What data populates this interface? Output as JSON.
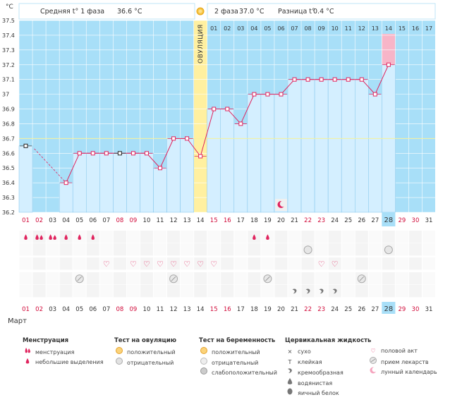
{
  "header": {
    "phase1_label": "Средняя t° 1 фаза",
    "phase1_value": "36.6 °C",
    "phase2_label": "2 фаза",
    "phase2_value": "37.0 °C",
    "diff_label": "Разница t°",
    "diff_value": "0.4 °C",
    "unit": "°C",
    "ovulation_label": "ОВУЛЯЦИЯ"
  },
  "month_label": "Март",
  "chart_data": {
    "type": "line",
    "title": "",
    "ylabel": "°C",
    "ylim": [
      36.2,
      37.5
    ],
    "yticks": [
      "37.5",
      "37.4",
      "37.3",
      "37.2",
      "37.1",
      "37",
      "36.9",
      "36.8",
      "36.7",
      "36.6",
      "36.5",
      "36.4",
      "36.3",
      "36.2"
    ],
    "coverline": 36.7,
    "ovulation_day": 14,
    "today_index": 27,
    "dates": [
      "01",
      "02",
      "03",
      "04",
      "05",
      "06",
      "07",
      "08",
      "09",
      "10",
      "11",
      "12",
      "13",
      "14",
      "15",
      "16",
      "17",
      "18",
      "19",
      "20",
      "21",
      "22",
      "23",
      "24",
      "25",
      "26",
      "27",
      "28",
      "29",
      "30",
      "31"
    ],
    "cycle_days": [
      "01",
      "02",
      "03",
      "04",
      "05",
      "06",
      "07",
      "08",
      "09",
      "10",
      "11",
      "12",
      "13",
      "14",
      "15",
      "16",
      "17"
    ],
    "temperatures": [
      36.65,
      null,
      null,
      36.4,
      36.6,
      36.6,
      36.6,
      36.6,
      36.6,
      36.6,
      36.5,
      36.7,
      36.7,
      36.58,
      36.9,
      36.9,
      36.8,
      37.0,
      37.0,
      37.0,
      37.1,
      37.1,
      37.1,
      37.1,
      37.1,
      37.1,
      37.0,
      37.2,
      null,
      null,
      null
    ],
    "marked_points": [
      1,
      8
    ],
    "red_dates": [
      1,
      2,
      8,
      9,
      15,
      16,
      22,
      23,
      29,
      30
    ],
    "moon_day": 20
  },
  "icon_rows": {
    "menstruation": {
      "01": "small",
      "02": "heavy",
      "03": "heavy",
      "04": "small",
      "05": "small",
      "06": "small",
      "18": "small",
      "19": "small"
    },
    "ovulation_test": {
      "22": "negative",
      "28": "negative"
    },
    "intercourse": {
      "07": "heart",
      "09": "heart",
      "10": "heart",
      "11": "heart",
      "12": "heart",
      "13": "heart",
      "14": "heart",
      "15": "heart",
      "23": "heart",
      "24": "heart"
    },
    "medication": {
      "05": "pill",
      "12": "pill",
      "19": "pill",
      "26": "pill"
    },
    "cervical_fluid": {
      "21": "creamy",
      "22": "creamy",
      "23": "creamy",
      "24": "creamy"
    }
  },
  "legend": {
    "col1": {
      "title": "Менструация",
      "items": [
        "менструация",
        "небольшие выделения"
      ]
    },
    "col2": {
      "title": "Тест на овуляцию",
      "items": [
        "положительный",
        "отрицательный"
      ]
    },
    "col3": {
      "title": "Тест на беременность",
      "items": [
        "положительный",
        "отрицательный",
        "слабоположительный"
      ]
    },
    "col4": {
      "title": "Цервикальная жидкость",
      "items": [
        "сухо",
        "клейкая",
        "кремообразная",
        "водянистая",
        "яичный белок"
      ]
    },
    "col5": {
      "items": [
        "половой акт",
        "прием лекарств",
        "лунный календарь"
      ]
    }
  },
  "colors": {
    "grid_bg": "#a8dff8",
    "grid_line": "#ffffff",
    "bar": "#d4efff",
    "bar_edge": "#7fc4ea",
    "line": "#e0245e",
    "ovulation": "#fff0a0",
    "today": "#f7b5c8",
    "red_text": "#d10b3a"
  }
}
